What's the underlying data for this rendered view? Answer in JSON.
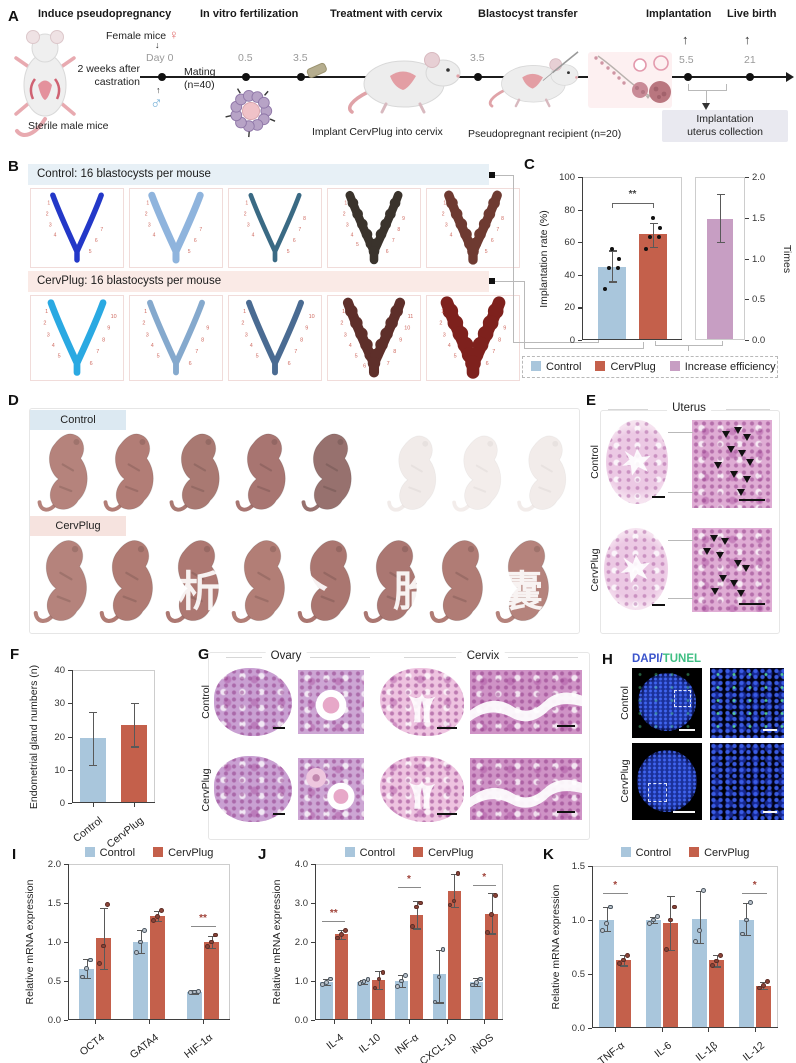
{
  "panels": {
    "A": {
      "label": "A",
      "steps": [
        "Induce pseudopregnancy",
        "In vitro fertilization",
        "Treatment with cervix",
        "Blastocyst transfer",
        "Implantation",
        "Live birth"
      ],
      "female_label": "Female mice",
      "female_symbol": "♀",
      "male_symbol": "♂",
      "castration": "2 weeks after\ncastration",
      "sterile": "Sterile male mice",
      "day0": "Day 0",
      "mating": "Mating\n(n=40)",
      "timepoints": [
        "0.5",
        "3.5",
        "3.5",
        "5.5",
        "21"
      ],
      "implant_label": "Implant CervPlug into cervix",
      "recipient_label": "Pseudopregnant recipient (n=20)",
      "collection_box": "Implantation\nuterus collection"
    },
    "B": {
      "label": "B",
      "control_header": "Control: 16 blastocysts per mouse",
      "cervplug_header": "CervPlug: 16 blastocysts per mouse",
      "control_sites": [
        7,
        7,
        8,
        9,
        8
      ],
      "cervplug_sites": [
        10,
        9,
        10,
        11,
        9
      ],
      "control_colors": [
        "#2338c8",
        "#8fb4dd",
        "#3a6a84",
        "#3a332c",
        "#6e3a31"
      ],
      "cervplug_colors": [
        "#2aa9e2",
        "#85a9cd",
        "#4a6b92",
        "#5e2f2a",
        "#7e211d"
      ],
      "site_number_color": "#cf6a60"
    },
    "C": {
      "label": "C"
    },
    "D": {
      "label": "D",
      "row1": "Control",
      "row2": "CervPlug",
      "watermark": "析 个 胎 囊 成"
    },
    "E": {
      "label": "E",
      "title": "Uterus",
      "rows": [
        "Control",
        "CervPlug"
      ]
    },
    "F": {
      "label": "F"
    },
    "G": {
      "label": "G",
      "titles": [
        "Ovary",
        "Cervix"
      ],
      "rows": [
        "Control",
        "CervPlug"
      ]
    },
    "H": {
      "label": "H",
      "title_dapi": "DAPI",
      "title_slash": "/",
      "title_tunel": "TUNEL",
      "dapi_color": "#3c55cc",
      "tunel_color": "#3fbf83",
      "rows": [
        "Control",
        "CervPlug"
      ]
    },
    "I": {
      "label": "I"
    },
    "J": {
      "label": "J"
    },
    "K": {
      "label": "K"
    }
  },
  "colors": {
    "control": "#a9c6dc",
    "cervplug": "#c4604b",
    "increase": "#c79ec3"
  },
  "chart_data": [
    {
      "id": "C",
      "type": "bar",
      "left_axis": {
        "label": "Implantation rate (%)",
        "ticks": [
          0,
          20,
          40,
          60,
          80,
          100
        ],
        "max": 100
      },
      "right_axis": {
        "label": "Times",
        "ticks": [
          "0.0",
          "0.5",
          "1.0",
          "1.5",
          "2.0"
        ],
        "max": 2.0
      },
      "bars": [
        {
          "name": "Control",
          "axis": "left",
          "value": 45,
          "lo": 36,
          "hi": 55,
          "points": [
            31,
            44,
            44,
            50,
            56
          ],
          "color": "#a9c6dc"
        },
        {
          "name": "CervPlug",
          "axis": "left",
          "value": 65,
          "lo": 57,
          "hi": 72,
          "points": [
            56,
            63,
            63,
            69,
            75
          ],
          "color": "#c4604b"
        },
        {
          "name": "Increase efficiency",
          "axis": "right",
          "value": 1.49,
          "lo": 1.2,
          "hi": 1.79,
          "points": [],
          "color": "#c79ec3"
        }
      ],
      "sig": [
        {
          "between": [
            0,
            1
          ],
          "label": "**",
          "at": 84
        }
      ],
      "legend": [
        "Control",
        "CervPlug",
        "Increase efficiency"
      ]
    },
    {
      "id": "F",
      "type": "bar",
      "ylabel": "Endometrial gland numbers (n)",
      "yticks": [
        "0",
        "10",
        "20",
        "30",
        "40"
      ],
      "ymax": 40,
      "categories": [
        "Control",
        "CervPlug"
      ],
      "bars": [
        {
          "value": 19.5,
          "lo": 11.5,
          "hi": 27.3,
          "color": "#a9c6dc"
        },
        {
          "value": 23.5,
          "lo": 17.0,
          "hi": 30.0,
          "color": "#c4604b"
        }
      ]
    },
    {
      "id": "I",
      "type": "bar",
      "ylabel": "Relative mRNA expression",
      "yticks": [
        "0.0",
        "0.5",
        "1.0",
        "1.5",
        "2.0"
      ],
      "ymax": 2.0,
      "legend": [
        "Control",
        "CervPlug"
      ],
      "categories": [
        "OCT4",
        "GATA4",
        "HIF-1α"
      ],
      "series": [
        {
          "name": "Control",
          "color": "#a9c6dc",
          "values": [
            0.66,
            1.0,
            0.36
          ],
          "lo": [
            0.54,
            0.86,
            0.34
          ],
          "hi": [
            0.78,
            1.15,
            0.38
          ],
          "points": [
            [
              0.55,
              0.66,
              0.77
            ],
            [
              0.87,
              1.0,
              1.15
            ],
            [
              0.35,
              0.36,
              0.37
            ]
          ]
        },
        {
          "name": "CervPlug",
          "color": "#c4604b",
          "values": [
            1.05,
            1.33,
            1.0
          ],
          "lo": [
            0.65,
            1.27,
            0.92
          ],
          "hi": [
            1.44,
            1.4,
            1.08
          ],
          "points": [
            [
              0.72,
              0.95,
              1.48
            ],
            [
              1.28,
              1.33,
              1.4
            ],
            [
              0.94,
              1.0,
              1.09
            ]
          ]
        }
      ],
      "sig": [
        {
          "category": 2,
          "label": "**",
          "at": 1.2
        }
      ]
    },
    {
      "id": "J",
      "type": "bar",
      "ylabel": "Relative mRNA expression",
      "yticks": [
        "0.0",
        "1.0",
        "2.0",
        "3.0",
        "4.0"
      ],
      "ymax": 4.0,
      "legend": [
        "Control",
        "CervPlug"
      ],
      "categories": [
        "IL-4",
        "IL-10",
        "INF-α",
        "CXCL-10",
        "iNOS"
      ],
      "series": [
        {
          "name": "Control",
          "color": "#a9c6dc",
          "values": [
            0.97,
            0.98,
            1.0,
            1.17,
            0.98
          ],
          "lo": [
            0.9,
            0.93,
            0.85,
            0.45,
            0.88
          ],
          "hi": [
            1.05,
            1.03,
            1.15,
            1.8,
            1.08
          ],
          "points": [
            [
              0.92,
              0.97,
              1.05
            ],
            [
              0.93,
              0.98,
              1.03
            ],
            [
              0.86,
              1.0,
              1.15
            ],
            [
              0.46,
              1.1,
              1.8
            ],
            [
              0.9,
              0.97,
              1.05
            ]
          ]
        },
        {
          "name": "CervPlug",
          "color": "#c4604b",
          "values": [
            2.2,
            1.03,
            2.7,
            3.3,
            2.72
          ],
          "lo": [
            2.08,
            0.8,
            2.35,
            2.9,
            2.22
          ],
          "hi": [
            2.32,
            1.25,
            3.05,
            3.75,
            3.25
          ],
          "points": [
            [
              2.1,
              2.2,
              2.3
            ],
            [
              0.82,
              1.05,
              1.22
            ],
            [
              2.4,
              2.9,
              3.0
            ],
            [
              2.95,
              3.05,
              3.75
            ],
            [
              2.25,
              2.7,
              3.2
            ]
          ]
        }
      ],
      "sig": [
        {
          "category": 0,
          "label": "**",
          "at": 2.55
        },
        {
          "category": 2,
          "label": "*",
          "at": 3.4
        },
        {
          "category": 4,
          "label": "*",
          "at": 3.45
        }
      ]
    },
    {
      "id": "K",
      "type": "bar",
      "ylabel": "Relative mRNA expression",
      "yticks": [
        "0.0",
        "0.5",
        "1.0",
        "1.5"
      ],
      "ymax": 1.5,
      "legend": [
        "Control",
        "CervPlug"
      ],
      "categories": [
        "TNF-α",
        "IL-6",
        "IL-1β",
        "IL-12"
      ],
      "series": [
        {
          "name": "Control",
          "color": "#a9c6dc",
          "values": [
            1.0,
            1.0,
            1.01,
            1.0
          ],
          "lo": [
            0.9,
            0.97,
            0.79,
            0.86
          ],
          "hi": [
            1.12,
            1.03,
            1.27,
            1.16
          ],
          "points": [
            [
              0.9,
              0.97,
              1.12
            ],
            [
              0.97,
              1.0,
              1.03
            ],
            [
              0.8,
              0.9,
              1.27
            ],
            [
              0.87,
              1.0,
              1.16
            ]
          ]
        },
        {
          "name": "CervPlug",
          "color": "#c4604b",
          "values": [
            0.63,
            0.97,
            0.63,
            0.39
          ],
          "lo": [
            0.58,
            0.72,
            0.57,
            0.36
          ],
          "hi": [
            0.68,
            1.22,
            0.68,
            0.43
          ],
          "points": [
            [
              0.6,
              0.63,
              0.67
            ],
            [
              0.73,
              1.0,
              1.12
            ],
            [
              0.58,
              0.62,
              0.67
            ],
            [
              0.37,
              0.39,
              0.43
            ]
          ]
        }
      ],
      "sig": [
        {
          "category": 0,
          "label": "*",
          "at": 1.25
        },
        {
          "category": 3,
          "label": "*",
          "at": 1.25
        }
      ]
    }
  ]
}
